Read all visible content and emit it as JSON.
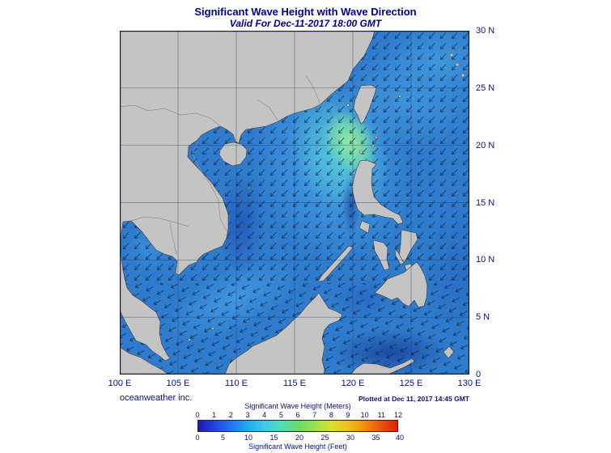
{
  "header": {
    "title": "Significant Wave Height with Wave Direction",
    "subtitle": "Valid For Dec-11-2017 18:00 GMT"
  },
  "map": {
    "lat_labels": [
      "30 N",
      "25 N",
      "20 N",
      "15 N",
      "10 N",
      "5 N",
      "0"
    ],
    "lon_labels": [
      "100 E",
      "105 E",
      "110 E",
      "115 E",
      "120 E",
      "125 E",
      "130 E"
    ]
  },
  "footer": {
    "credit": "oceanweather inc.",
    "plotted": "Plotted at Dec 11, 2017 14:45 GMT"
  },
  "colorbar": {
    "title_meters": "Significant Wave Height (Meters)",
    "title_feet": "Significant Wave Height (Feet)",
    "meter_ticks": [
      "0",
      "1",
      "2",
      "3",
      "4",
      "5",
      "6",
      "7",
      "8",
      "9",
      "10",
      "11",
      "12"
    ],
    "feet_ticks": [
      "0",
      "5",
      "10",
      "15",
      "20",
      "25",
      "30",
      "35",
      "40"
    ],
    "meters_max": 12,
    "feet_to_meter": 0.3048,
    "colors": [
      "#1a1ab8",
      "#2244dd",
      "#2277ee",
      "#22aaee",
      "#40c8e8",
      "#55dcb4",
      "#66dd66",
      "#99e055",
      "#d8e030",
      "#f0c020",
      "#f09010",
      "#e85510",
      "#dd2200"
    ],
    "sea_base_color": "#2f7cce",
    "land_color": "#c4c4c4"
  }
}
